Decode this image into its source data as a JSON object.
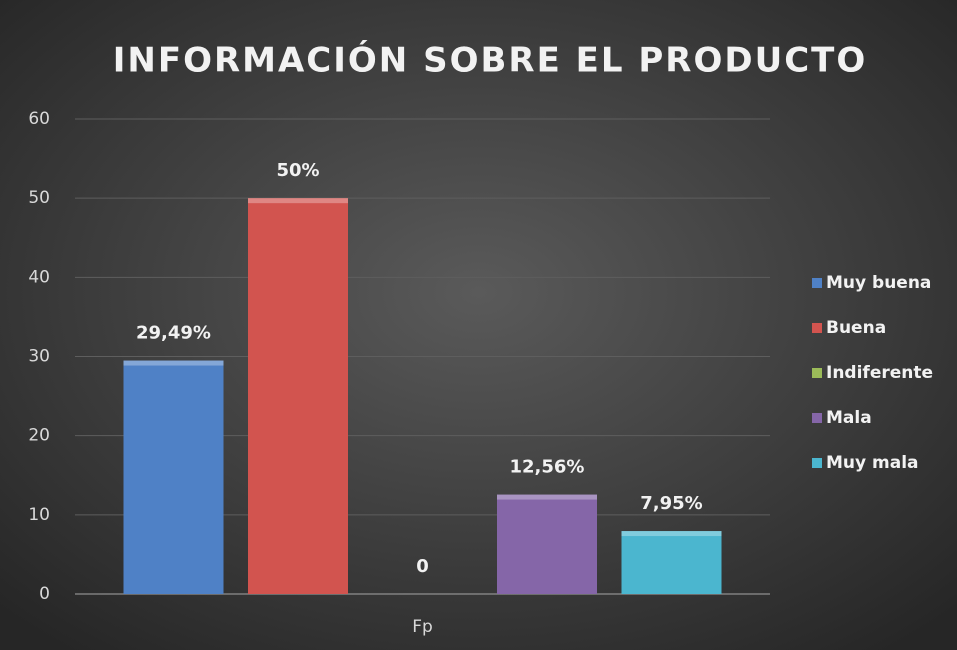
{
  "chart_data": {
    "type": "bar",
    "title": "INFORMACIÓN SOBRE EL PRODUCTO",
    "categories": [
      "Fp"
    ],
    "series": [
      {
        "name": "Muy buena",
        "color": "#4f81c6",
        "values": [
          29.49
        ],
        "value_labels": [
          "29,49%"
        ]
      },
      {
        "name": "Buena",
        "color": "#d2544f",
        "values": [
          50
        ],
        "value_labels": [
          "50%"
        ]
      },
      {
        "name": "Indiferente",
        "color": "#9bbb59",
        "values": [
          0
        ],
        "value_labels": [
          "0"
        ]
      },
      {
        "name": "Mala",
        "color": "#8566a8",
        "values": [
          12.56
        ],
        "value_labels": [
          "12,56%"
        ]
      },
      {
        "name": "Muy mala",
        "color": "#4bb6cf",
        "values": [
          7.95
        ],
        "value_labels": [
          "7,95%"
        ]
      }
    ],
    "ylim": [
      0,
      60
    ],
    "yticks": [
      0,
      10,
      20,
      30,
      40,
      50,
      60
    ],
    "grid": true,
    "legend": "right"
  }
}
